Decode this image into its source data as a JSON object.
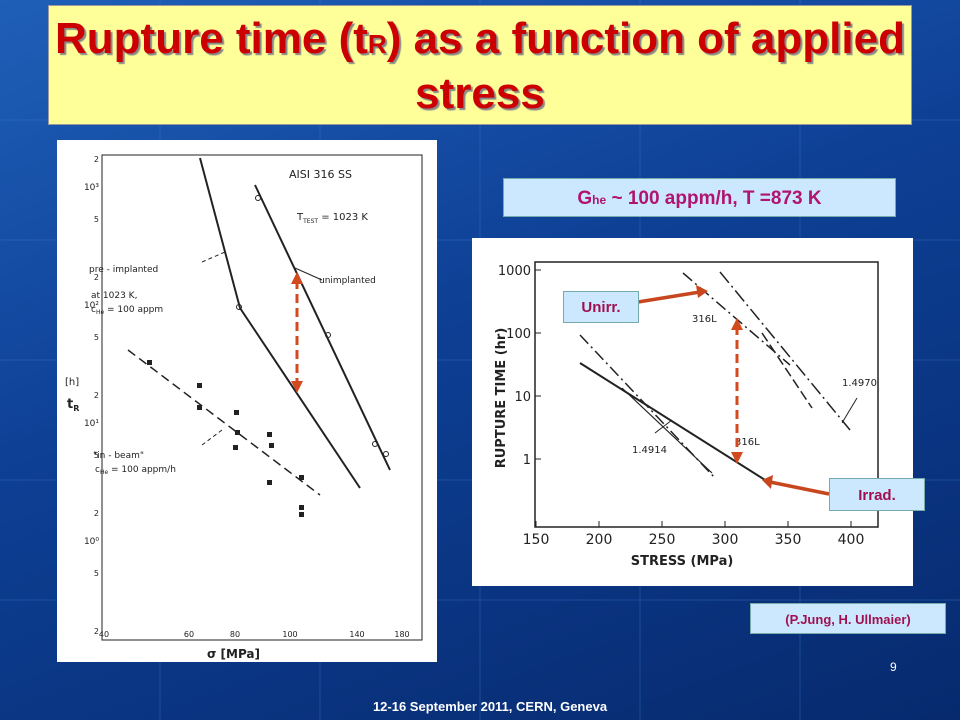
{
  "header": {
    "title_start": "Rupture time (t",
    "title_sub": "R",
    "title_end": ") as a function of applied stress"
  },
  "condition": {
    "symbol": "G",
    "sub": "he",
    "rest": " ~ 100 appm/h, T =873 K"
  },
  "left_plot": {
    "material": "AISI 316 SS",
    "temperature": "T",
    "temperature_sub": "TEST",
    "temperature_rest": " = 1023 K",
    "pre_implanted": [
      "pre - implanted",
      "at  1023 K,",
      "c",
      "He",
      " = 100 appm"
    ],
    "unimplanted": "unimplanted",
    "in_beam": [
      "\"in - beam\"",
      "c",
      "He",
      " = 100 appm/h"
    ],
    "y_label": "t",
    "y_label_sub": "R",
    "y_label_unit": "[h]",
    "x_label": "σ  [MPa]",
    "x_ticks": [
      "40",
      "60",
      "80",
      "100",
      "140",
      "180"
    ],
    "y_ticks": [
      "10³",
      "10²",
      "10¹",
      "10⁰"
    ],
    "minor_ticks": [
      "2",
      "5",
      "2",
      "5",
      "2",
      "5",
      "2",
      "5",
      "2",
      "5",
      "2"
    ]
  },
  "right_plot": {
    "y_label": "RUPTURE  TIME  (hr)",
    "x_label": "STRESS  (MPa)",
    "x_ticks": [
      "150",
      "200",
      "250",
      "300",
      "350",
      "400"
    ],
    "y_ticks": [
      "1000",
      "100",
      "10",
      "1"
    ],
    "curve_labels": [
      "316L",
      "1.4970",
      "1.4914",
      "316L"
    ]
  },
  "callouts": {
    "unirradiated": "Unirr.",
    "irradiated": "Irrad."
  },
  "citation": "(P.Jung, H. Ullmaier)",
  "page_number": "9",
  "footer": "12-16  September 2011, CERN, Geneva"
}
